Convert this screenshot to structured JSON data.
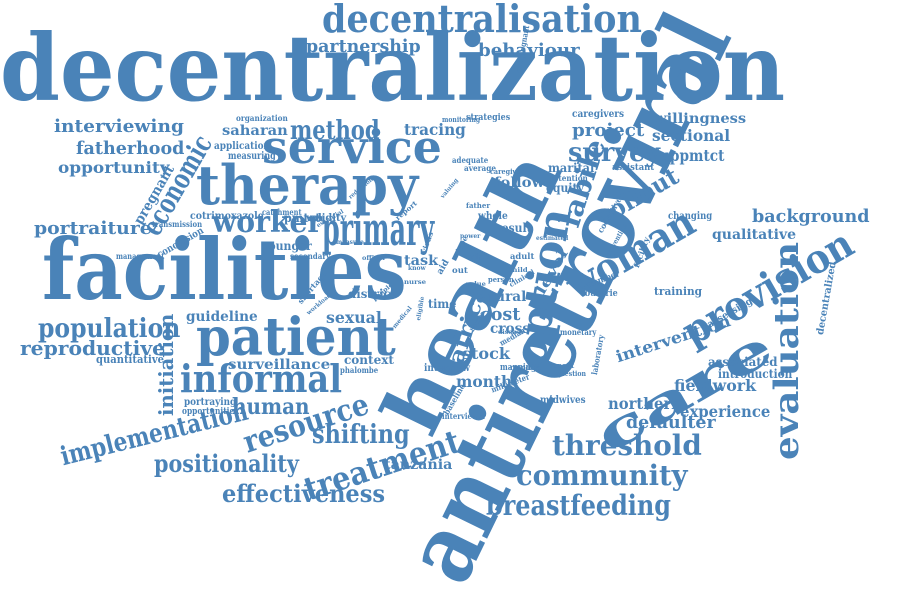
{
  "colors": {
    "word": "#4a83b8",
    "background": "#ffffff"
  },
  "words": [
    {
      "key": "decentralization",
      "text": "decentralization",
      "weight": 100
    },
    {
      "key": "antiretroviral",
      "text": "antiretroviral",
      "weight": 98
    },
    {
      "key": "health",
      "text": "health",
      "weight": 95
    },
    {
      "key": "facilities",
      "text": "facilities",
      "weight": 90
    },
    {
      "key": "therapy",
      "text": "therapy",
      "weight": 70
    },
    {
      "key": "service",
      "text": "service",
      "weight": 62
    },
    {
      "key": "patient",
      "text": "patient",
      "weight": 60
    },
    {
      "key": "primary",
      "text": "primary",
      "weight": 58
    },
    {
      "key": "care",
      "text": "care",
      "weight": 56
    },
    {
      "key": "decentralisation",
      "text": "decentralisation",
      "weight": 50
    },
    {
      "key": "option",
      "text": "option",
      "weight": 48
    },
    {
      "key": "woman",
      "text": "woman",
      "weight": 47
    },
    {
      "key": "provision",
      "text": "provision",
      "weight": 45
    },
    {
      "key": "evaluation",
      "text": "evaluation",
      "weight": 42
    },
    {
      "key": "informal",
      "text": "informal",
      "weight": 42
    },
    {
      "key": "treatment",
      "text": "treatment",
      "weight": 40
    },
    {
      "key": "resource",
      "text": "resource",
      "weight": 38
    },
    {
      "key": "worker",
      "text": "worker",
      "weight": 36
    },
    {
      "key": "economic",
      "text": "economic",
      "weight": 34
    },
    {
      "key": "community",
      "text": "community",
      "weight": 33
    },
    {
      "key": "threshold",
      "text": "threshold",
      "weight": 33
    },
    {
      "key": "breastfeeding",
      "text": "breastfeeding",
      "weight": 33
    },
    {
      "key": "implementation",
      "text": "implementation",
      "weight": 32
    },
    {
      "key": "shifting",
      "text": "shifting",
      "weight": 31
    },
    {
      "key": "population",
      "text": "population",
      "weight": 30
    },
    {
      "key": "labile",
      "text": "labile",
      "weight": 30
    },
    {
      "key": "positionality",
      "text": "positionality",
      "weight": 30
    },
    {
      "key": "effectiveness",
      "text": "effectiveness",
      "weight": 29
    },
    {
      "key": "survey",
      "text": "survey",
      "weight": 29
    },
    {
      "key": "method",
      "text": "method",
      "weight": 29
    },
    {
      "key": "rollout",
      "text": "rollout",
      "weight": 28
    },
    {
      "key": "partnership",
      "text": "partnership",
      "weight": 27
    },
    {
      "key": "behaviour",
      "text": "behaviour",
      "weight": 27
    },
    {
      "key": "background",
      "text": "background",
      "weight": 27
    },
    {
      "key": "reproductive",
      "text": "reproductive",
      "weight": 26
    },
    {
      "key": "africa",
      "text": "africa",
      "weight": 26
    },
    {
      "key": "human",
      "text": "human",
      "weight": 26
    },
    {
      "key": "project",
      "text": "project",
      "weight": 25
    },
    {
      "key": "interviewing",
      "text": "interviewing",
      "weight": 24
    },
    {
      "key": "portraiture",
      "text": "portraiture",
      "weight": 24
    },
    {
      "key": "fatherhood",
      "text": "fatherhood",
      "weight": 24
    },
    {
      "key": "defaulter",
      "text": "defaulter",
      "weight": 24
    },
    {
      "key": "initiation",
      "text": "initiation",
      "weight": 24
    },
    {
      "key": "cost",
      "text": "cost",
      "weight": 23
    },
    {
      "key": "intervention",
      "text": "intervention",
      "weight": 22
    },
    {
      "key": "experience",
      "text": "experience",
      "weight": 22
    },
    {
      "key": "fieldwork",
      "text": "fieldwork",
      "weight": 22
    },
    {
      "key": "northern",
      "text": "northern",
      "weight": 22
    },
    {
      "key": "tracing",
      "text": "tracing",
      "weight": 22
    },
    {
      "key": "pregnant",
      "text": "pregnant",
      "weight": 22
    },
    {
      "key": "sexual",
      "text": "sexual",
      "weight": 21
    },
    {
      "key": "opportunity",
      "text": "opportunity",
      "weight": 21
    },
    {
      "key": "sectional",
      "text": "sectional",
      "weight": 20
    },
    {
      "key": "uppmtct",
      "text": "uppmtct",
      "weight": 20
    },
    {
      "key": "saharan",
      "text": "saharan",
      "weight": 19
    },
    {
      "key": "month",
      "text": "month",
      "weight": 19
    },
    {
      "key": "level",
      "text": "level",
      "weight": 19
    },
    {
      "key": "stock",
      "text": "stock",
      "weight": 19
    },
    {
      "key": "surveillance",
      "text": "surveillance",
      "weight": 18
    },
    {
      "key": "willingness",
      "text": "willingness",
      "weight": 18
    },
    {
      "key": "guideline",
      "text": "guideline",
      "weight": 18
    },
    {
      "key": "task",
      "text": "task",
      "weight": 18
    },
    {
      "key": "tanzania",
      "text": "tanzania",
      "weight": 17
    },
    {
      "key": "qualitative",
      "text": "qualitative",
      "weight": 17
    },
    {
      "key": "cross",
      "text": "cross",
      "weight": 17
    },
    {
      "key": "rural",
      "text": "rural",
      "weight": 17
    },
    {
      "key": "follow",
      "text": "follow",
      "weight": 17
    },
    {
      "key": "decentralized",
      "text": "decentralized",
      "weight": 16
    },
    {
      "key": "marital",
      "text": "marital",
      "weight": 16
    },
    {
      "key": "associated",
      "text": "associated",
      "weight": 16
    },
    {
      "key": "introduction",
      "text": "introduction",
      "weight": 16
    },
    {
      "key": "context",
      "text": "context",
      "weight": 16
    },
    {
      "key": "district",
      "text": "district",
      "weight": 16
    },
    {
      "key": "quantitative",
      "text": "quantitative",
      "weight": 15
    },
    {
      "key": "training",
      "text": "training",
      "weight": 15
    },
    {
      "key": "result",
      "text": "result",
      "weight": 15
    },
    {
      "key": "pmtct",
      "text": "pmtct",
      "weight": 15
    },
    {
      "key": "younger",
      "text": "younger",
      "weight": 15
    },
    {
      "key": "equity",
      "text": "equity",
      "weight": 15
    },
    {
      "key": "cotrimoxazole",
      "text": "cotrimoxazole",
      "weight": 14
    },
    {
      "key": "interview",
      "text": "interview",
      "weight": 14
    },
    {
      "key": "time",
      "text": "time",
      "weight": 14
    },
    {
      "key": "midwives",
      "text": "midwives",
      "weight": 14
    },
    {
      "key": "validity",
      "text": "validity",
      "weight": 14
    },
    {
      "key": "changing",
      "text": "changing",
      "weight": 14
    },
    {
      "key": "conclusion",
      "text": "conclusion",
      "weight": 14
    },
    {
      "key": "portraying",
      "text": "portraying",
      "weight": 14
    },
    {
      "key": "opportunities",
      "text": "opportunities",
      "weight": 13
    },
    {
      "key": "assessing",
      "text": "assessing",
      "weight": 13
    },
    {
      "key": "whole",
      "text": "whole",
      "weight": 13
    },
    {
      "key": "caregivers",
      "text": "caregivers",
      "weight": 13
    },
    {
      "key": "application",
      "text": "application",
      "weight": 13
    },
    {
      "key": "measuring",
      "text": "measuring",
      "weight": 13
    },
    {
      "key": "strategies",
      "text": "strategies",
      "weight": 12
    },
    {
      "key": "countrie",
      "text": "countrie",
      "weight": 12
    },
    {
      "key": "number",
      "text": "number",
      "weight": 12
    },
    {
      "key": "organization",
      "text": "organization",
      "weight": 12
    },
    {
      "key": "assistant",
      "text": "assistant",
      "weight": 12
    },
    {
      "key": "monetary",
      "text": "monetary",
      "weight": 11
    },
    {
      "key": "management",
      "text": "management",
      "weight": 11
    },
    {
      "key": "transmission",
      "text": "transmission",
      "weight": 11
    },
    {
      "key": "catchment",
      "text": "catchment",
      "weight": 11
    },
    {
      "key": "secondary",
      "text": "secondary",
      "weight": 11
    },
    {
      "key": "shortage",
      "text": "shortage",
      "weight": 11
    },
    {
      "key": "phalombe",
      "text": "phalombe",
      "weight": 11
    },
    {
      "key": "baseline",
      "text": "baseline",
      "weight": 11
    },
    {
      "key": "interviewer",
      "text": "interviewer",
      "weight": 11
    },
    {
      "key": "millimeter",
      "text": "millimeter",
      "weight": 10
    },
    {
      "key": "laboratory",
      "text": "laboratory",
      "weight": 10
    },
    {
      "key": "facility",
      "text": "facility",
      "weight": 10
    },
    {
      "key": "nonpregnant",
      "text": "nonpregnant",
      "weight": 10
    },
    {
      "key": "median",
      "text": "median",
      "weight": 10
    },
    {
      "key": "mapping",
      "text": "mapping",
      "weight": 10
    },
    {
      "key": "retention",
      "text": "retention",
      "weight": 10
    },
    {
      "key": "collective",
      "text": "collective",
      "weight": 10
    },
    {
      "key": "adequate",
      "text": "adequate",
      "weight": 10
    },
    {
      "key": "average",
      "text": "average",
      "weight": 10
    },
    {
      "key": "caregiver",
      "text": "caregiver",
      "weight": 10
    },
    {
      "key": "monitoring",
      "text": "monitoring",
      "weight": 10
    },
    {
      "key": "prevention",
      "text": "prevention",
      "weight": 9
    },
    {
      "key": "response",
      "text": "response",
      "weight": 9
    },
    {
      "key": "benefit",
      "text": "benefit",
      "weight": 9
    },
    {
      "key": "question",
      "text": "question",
      "weight": 9
    },
    {
      "key": "person",
      "text": "person",
      "weight": 9
    },
    {
      "key": "clinical",
      "text": "clinical",
      "weight": 9
    },
    {
      "key": "adult",
      "text": "adult",
      "weight": 9
    },
    {
      "key": "risk",
      "text": "risk",
      "weight": 9
    },
    {
      "key": "father",
      "text": "father",
      "weight": 9
    },
    {
      "key": "estimated",
      "text": "estimated",
      "weight": 8
    },
    {
      "key": "child",
      "text": "child",
      "weight": 8
    },
    {
      "key": "workload",
      "text": "workload",
      "weight": 8
    },
    {
      "key": "reduction",
      "text": "reduction",
      "weight": 8
    },
    {
      "key": "essential",
      "text": "essential",
      "weight": 8
    },
    {
      "key": "measure",
      "text": "measure",
      "weight": 8
    },
    {
      "key": "officer",
      "text": "officer",
      "weight": 8
    },
    {
      "key": "nurse",
      "text": "nurse",
      "weight": 8
    },
    {
      "key": "virus",
      "text": "virus",
      "weight": 8
    },
    {
      "key": "value",
      "text": "value",
      "weight": 8
    },
    {
      "key": "type",
      "text": "type",
      "weight": 8
    },
    {
      "key": "aid",
      "text": "aid",
      "weight": 8
    },
    {
      "key": "disease",
      "text": "disease",
      "weight": 8
    },
    {
      "key": "report",
      "text": "report",
      "weight": 8
    },
    {
      "key": "valuing",
      "text": "valuing",
      "weight": 8
    },
    {
      "key": "eligible",
      "text": "eligible",
      "weight": 8
    },
    {
      "key": "medical",
      "text": "medical",
      "weight": 8
    },
    {
      "key": "know",
      "text": "know",
      "weight": 8
    },
    {
      "key": "power",
      "text": "power",
      "weight": 8
    },
    {
      "key": "out",
      "text": "out",
      "weight": 8
    },
    {
      "key": "bodies",
      "text": "bodies",
      "weight": 8
    },
    {
      "key": "people",
      "text": "people",
      "weight": 8
    }
  ]
}
